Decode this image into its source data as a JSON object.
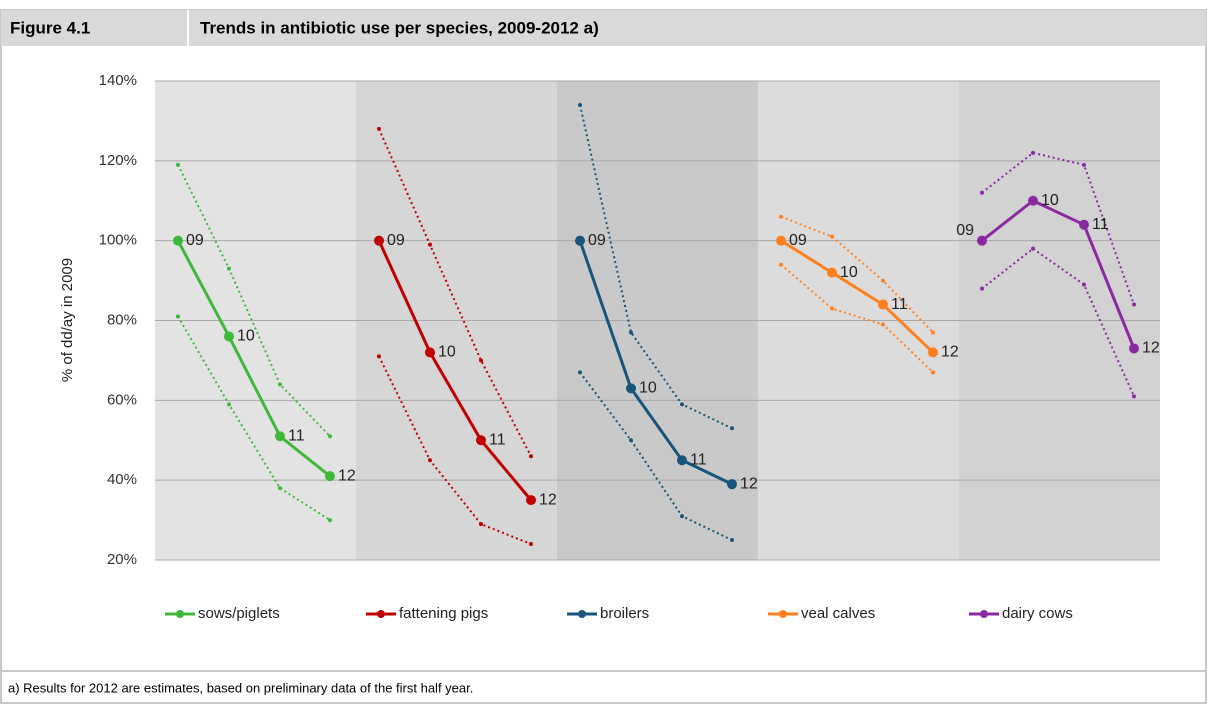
{
  "chart_data": {
    "type": "line",
    "figure_label": "Figure 4.1",
    "title": "Trends in antibiotic use per species, 2009-2012 a)",
    "y_label": "% of  dd/ay in 2009",
    "ylim": [
      20,
      140
    ],
    "yticks": [
      {
        "value": 20,
        "label": "20%"
      },
      {
        "value": 40,
        "label": "40%"
      },
      {
        "value": 60,
        "label": "60%"
      },
      {
        "value": 80,
        "label": "80%"
      },
      {
        "value": 100,
        "label": "100%"
      },
      {
        "value": 120,
        "label": "120%"
      },
      {
        "value": 140,
        "label": "140%"
      }
    ],
    "grid": true,
    "point_labels": [
      "09",
      "10",
      "11",
      "12"
    ],
    "series": [
      {
        "name": "sows/piglets",
        "color": "#3fb83a",
        "values": [
          100,
          76,
          51,
          41
        ],
        "upper": [
          119,
          93,
          64,
          51
        ],
        "lower": [
          81,
          59,
          38,
          30
        ]
      },
      {
        "name": "fattening pigs",
        "color": "#c00000",
        "values": [
          100,
          72,
          50,
          35
        ],
        "upper": [
          128,
          99,
          70,
          46
        ],
        "lower": [
          71,
          45,
          29,
          24
        ]
      },
      {
        "name": "broilers",
        "color": "#17567a",
        "values": [
          100,
          63,
          45,
          39
        ],
        "upper": [
          134,
          77,
          59,
          53
        ],
        "lower": [
          67,
          50,
          31,
          25
        ]
      },
      {
        "name": "veal calves",
        "color": "#ff7f1e",
        "values": [
          100,
          92,
          84,
          72
        ],
        "upper": [
          106,
          101,
          90,
          77
        ],
        "lower": [
          94,
          83,
          79,
          67
        ]
      },
      {
        "name": "dairy cows",
        "color": "#8b2aa0",
        "values": [
          100,
          110,
          104,
          73
        ],
        "upper": [
          112,
          122,
          119,
          84
        ],
        "lower": [
          88,
          98,
          89,
          61
        ]
      }
    ],
    "footnote": "a) Results for 2012 are estimates, based on preliminary data of the first half year."
  }
}
